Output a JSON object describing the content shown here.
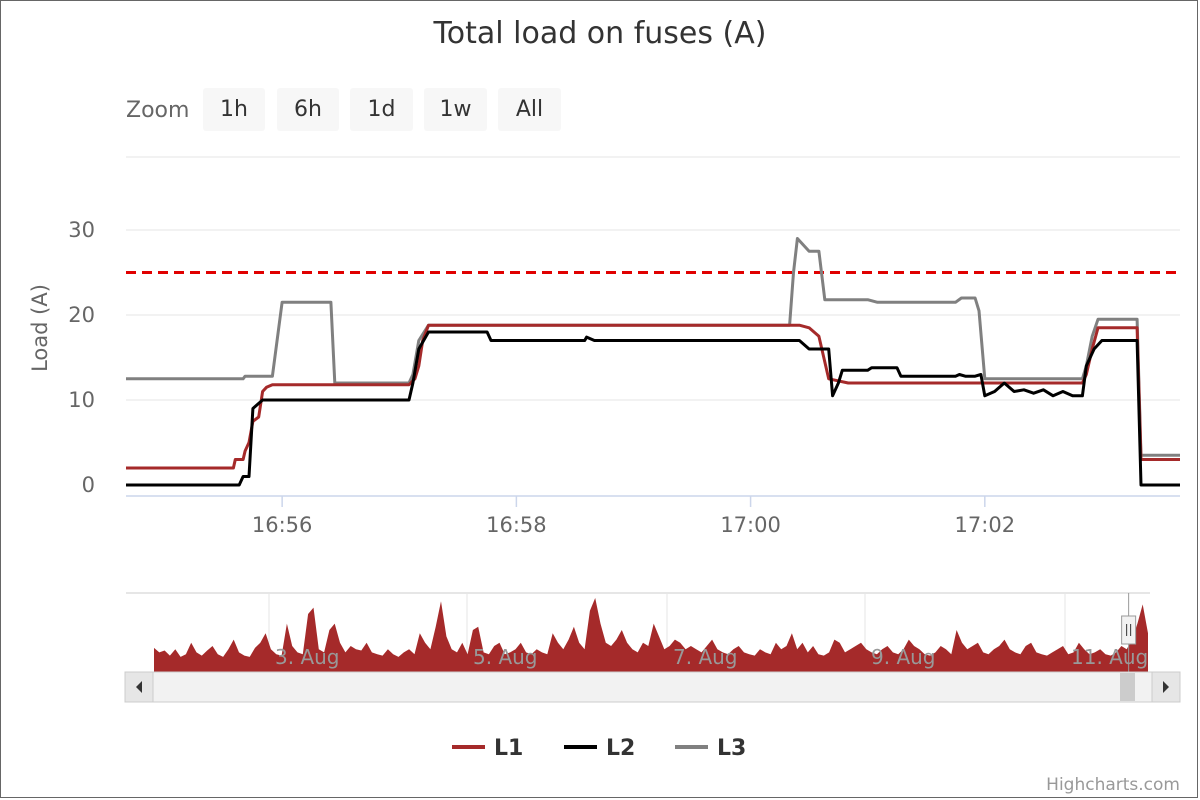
{
  "chart_data": {
    "type": "line",
    "title": "Total load on fuses (A)",
    "ylabel": "Load (A)",
    "ylim": [
      0,
      30
    ],
    "y_ticks": [
      0,
      10,
      20,
      30
    ],
    "x_range": [
      "16:54:40",
      "17:03:40"
    ],
    "x_ticks": [
      "16:56",
      "16:58",
      "17:00",
      "17:02"
    ],
    "threshold": {
      "value": 25,
      "color": "#e00000",
      "style": "dashed"
    },
    "series": [
      {
        "name": "L1",
        "color": "#a52a2a",
        "points": [
          [
            "16:54:40",
            2
          ],
          [
            "16:55:35",
            2
          ],
          [
            "16:55:36",
            3
          ],
          [
            "16:55:40",
            3
          ],
          [
            "16:55:41",
            4
          ],
          [
            "16:55:43",
            5
          ],
          [
            "16:55:45",
            7.5
          ],
          [
            "16:55:48",
            8
          ],
          [
            "16:55:50",
            11
          ],
          [
            "16:55:52",
            11.5
          ],
          [
            "16:55:55",
            11.8
          ],
          [
            "16:57:05",
            11.8
          ],
          [
            "16:57:08",
            12.5
          ],
          [
            "16:57:10",
            14
          ],
          [
            "16:57:12",
            17
          ],
          [
            "16:57:15",
            18.8
          ],
          [
            "17:00:25",
            18.8
          ],
          [
            "17:00:30",
            18.5
          ],
          [
            "17:00:35",
            17.5
          ],
          [
            "17:00:40",
            12.5
          ],
          [
            "17:00:50",
            12
          ],
          [
            "17:02:00",
            12
          ],
          [
            "17:02:01",
            12
          ],
          [
            "17:02:50",
            12
          ],
          [
            "17:02:52",
            13
          ],
          [
            "17:02:55",
            16
          ],
          [
            "17:02:58",
            18.5
          ],
          [
            "17:03:18",
            18.5
          ],
          [
            "17:03:20",
            3
          ],
          [
            "17:03:40",
            3
          ]
        ]
      },
      {
        "name": "L2",
        "color": "#000000",
        "points": [
          [
            "16:54:40",
            0
          ],
          [
            "16:55:38",
            0
          ],
          [
            "16:55:40",
            1
          ],
          [
            "16:55:43",
            1
          ],
          [
            "16:55:45",
            9
          ],
          [
            "16:55:50",
            10
          ],
          [
            "16:57:05",
            10
          ],
          [
            "16:57:07",
            12
          ],
          [
            "16:57:10",
            16
          ],
          [
            "16:57:15",
            18
          ],
          [
            "16:57:45",
            18
          ],
          [
            "16:57:47",
            17
          ],
          [
            "16:58:35",
            17
          ],
          [
            "16:58:36",
            17.4
          ],
          [
            "16:58:40",
            17
          ],
          [
            "17:00:25",
            17
          ],
          [
            "17:00:30",
            16
          ],
          [
            "17:00:40",
            16
          ],
          [
            "17:00:42",
            10.5
          ],
          [
            "17:00:45",
            12
          ],
          [
            "17:00:47",
            13.5
          ],
          [
            "17:01:00",
            13.5
          ],
          [
            "17:01:02",
            13.8
          ],
          [
            "17:01:15",
            13.8
          ],
          [
            "17:01:17",
            12.8
          ],
          [
            "17:01:45",
            12.8
          ],
          [
            "17:01:47",
            13
          ],
          [
            "17:01:50",
            12.8
          ],
          [
            "17:01:55",
            12.8
          ],
          [
            "17:01:58",
            13
          ],
          [
            "17:02:00",
            10.5
          ],
          [
            "17:02:05",
            11
          ],
          [
            "17:02:10",
            12
          ],
          [
            "17:02:15",
            11
          ],
          [
            "17:02:20",
            11.2
          ],
          [
            "17:02:25",
            10.8
          ],
          [
            "17:02:30",
            11.2
          ],
          [
            "17:02:35",
            10.5
          ],
          [
            "17:02:40",
            11
          ],
          [
            "17:02:45",
            10.5
          ],
          [
            "17:02:50",
            10.5
          ],
          [
            "17:02:52",
            14
          ],
          [
            "17:02:56",
            16
          ],
          [
            "17:03:00",
            17
          ],
          [
            "17:03:18",
            17
          ],
          [
            "17:03:20",
            0
          ],
          [
            "17:03:40",
            0
          ]
        ]
      },
      {
        "name": "L3",
        "color": "#808080",
        "points": [
          [
            "16:54:40",
            12.5
          ],
          [
            "16:55:40",
            12.5
          ],
          [
            "16:55:41",
            12.8
          ],
          [
            "16:55:55",
            12.8
          ],
          [
            "16:55:58",
            18
          ],
          [
            "16:56:00",
            21.5
          ],
          [
            "16:56:25",
            21.5
          ],
          [
            "16:56:27",
            12
          ],
          [
            "16:57:05",
            12
          ],
          [
            "16:57:07",
            13
          ],
          [
            "16:57:10",
            17
          ],
          [
            "16:57:15",
            18.8
          ],
          [
            "17:00:20",
            18.8
          ],
          [
            "17:00:22",
            25
          ],
          [
            "17:00:24",
            29
          ],
          [
            "17:00:28",
            28
          ],
          [
            "17:00:30",
            27.5
          ],
          [
            "17:00:35",
            27.5
          ],
          [
            "17:00:38",
            21.8
          ],
          [
            "17:01:00",
            21.8
          ],
          [
            "17:01:05",
            21.5
          ],
          [
            "17:01:45",
            21.5
          ],
          [
            "17:01:48",
            22
          ],
          [
            "17:01:55",
            22
          ],
          [
            "17:01:57",
            20.5
          ],
          [
            "17:02:00",
            12.5
          ],
          [
            "17:02:50",
            12.5
          ],
          [
            "17:02:52",
            14
          ],
          [
            "17:02:55",
            17.5
          ],
          [
            "17:02:58",
            19.5
          ],
          [
            "17:03:18",
            19.5
          ],
          [
            "17:03:20",
            3.5
          ],
          [
            "17:03:40",
            3.5
          ]
        ]
      }
    ],
    "navigator": {
      "ticks": [
        "3. Aug",
        "5. Aug",
        "7. Aug",
        "9. Aug",
        "11. Aug"
      ],
      "area_color": "#a52a2a",
      "selected_range_fraction": [
        0.965,
        0.985
      ],
      "profile": [
        0.22,
        0.15,
        0.18,
        0.1,
        0.2,
        0.08,
        0.12,
        0.3,
        0.15,
        0.1,
        0.18,
        0.25,
        0.12,
        0.08,
        0.2,
        0.35,
        0.15,
        0.1,
        0.08,
        0.22,
        0.3,
        0.45,
        0.2,
        0.12,
        0.1,
        0.6,
        0.25,
        0.15,
        0.12,
        0.75,
        0.85,
        0.2,
        0.15,
        0.5,
        0.6,
        0.3,
        0.15,
        0.25,
        0.2,
        0.18,
        0.3,
        0.15,
        0.12,
        0.1,
        0.2,
        0.12,
        0.08,
        0.15,
        0.2,
        0.12,
        0.45,
        0.3,
        0.2,
        0.55,
        0.95,
        0.4,
        0.2,
        0.15,
        0.3,
        0.12,
        0.5,
        0.55,
        0.15,
        0.12,
        0.25,
        0.3,
        0.12,
        0.15,
        0.2,
        0.3,
        0.15,
        0.12,
        0.2,
        0.15,
        0.12,
        0.45,
        0.3,
        0.2,
        0.35,
        0.55,
        0.3,
        0.2,
        0.8,
        1.0,
        0.6,
        0.3,
        0.25,
        0.35,
        0.5,
        0.3,
        0.2,
        0.15,
        0.3,
        0.25,
        0.6,
        0.4,
        0.2,
        0.25,
        0.35,
        0.3,
        0.2,
        0.25,
        0.2,
        0.15,
        0.25,
        0.35,
        0.2,
        0.15,
        0.12,
        0.2,
        0.25,
        0.15,
        0.12,
        0.1,
        0.2,
        0.15,
        0.12,
        0.3,
        0.2,
        0.25,
        0.45,
        0.2,
        0.3,
        0.15,
        0.25,
        0.12,
        0.1,
        0.15,
        0.35,
        0.3,
        0.15,
        0.2,
        0.25,
        0.3,
        0.2,
        0.15,
        0.12,
        0.2,
        0.25,
        0.15,
        0.12,
        0.2,
        0.35,
        0.25,
        0.2,
        0.12,
        0.1,
        0.15,
        0.25,
        0.2,
        0.12,
        0.5,
        0.3,
        0.2,
        0.25,
        0.3,
        0.15,
        0.12,
        0.2,
        0.25,
        0.35,
        0.2,
        0.15,
        0.12,
        0.25,
        0.3,
        0.15,
        0.12,
        0.1,
        0.15,
        0.2,
        0.25,
        0.12,
        0.15,
        0.3,
        0.2,
        0.12,
        0.15,
        0.2,
        0.12,
        0.1,
        0.15,
        0.25,
        0.2,
        0.35,
        0.6,
        0.9,
        0.45
      ]
    }
  },
  "range_selector": {
    "label": "Zoom",
    "buttons": [
      "1h",
      "6h",
      "1d",
      "1w",
      "All"
    ]
  },
  "legend": [
    "L1",
    "L2",
    "L3"
  ],
  "credits": "Highcharts.com"
}
